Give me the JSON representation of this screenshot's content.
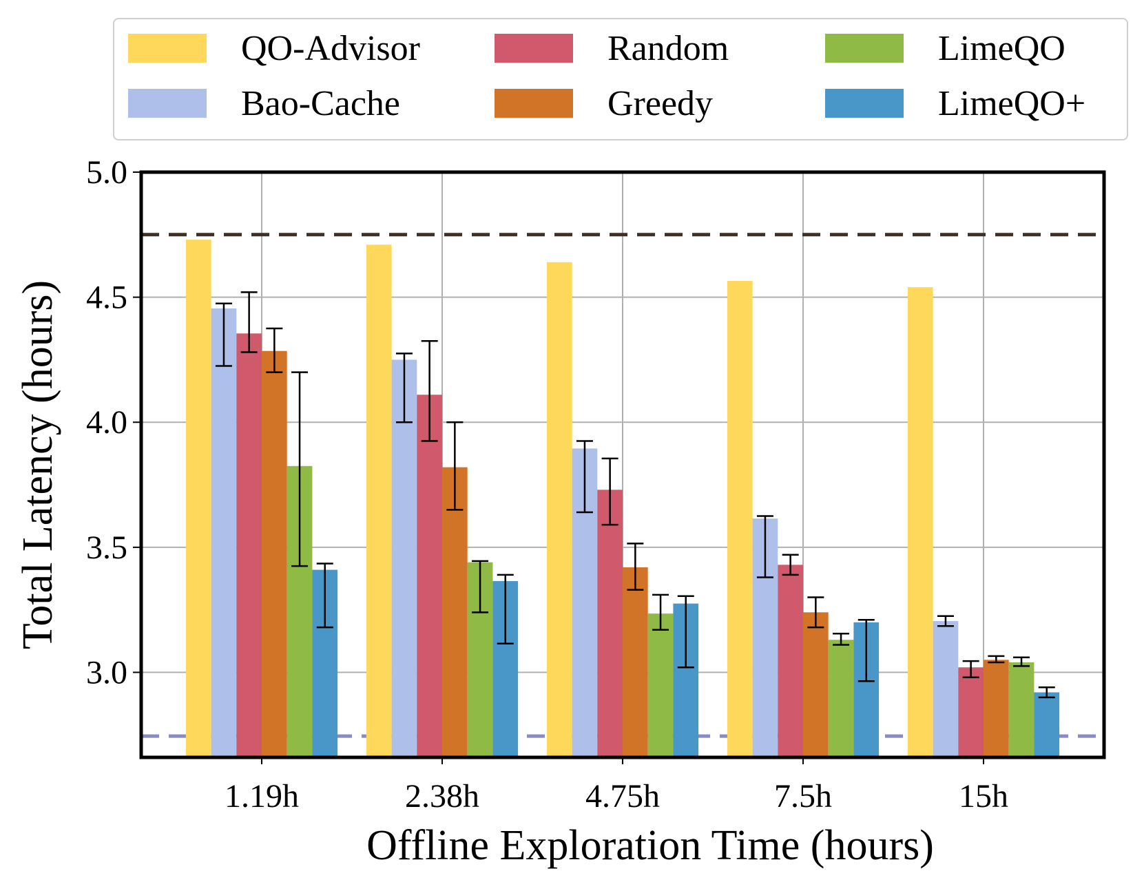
{
  "chart_data": {
    "type": "bar",
    "title": "",
    "xlabel": "Offline Exploration Time (hours)",
    "ylabel": "Total Latency (hours)",
    "categories": [
      "1.19h",
      "2.38h",
      "4.75h",
      "7.5h",
      "15h"
    ],
    "ylim": [
      2.66,
      5.0
    ],
    "yticks": [
      "3.0",
      "3.5",
      "4.0",
      "4.5",
      "5.0"
    ],
    "grid": true,
    "legend_position": "top",
    "reference_lines": [
      {
        "value": 4.75,
        "color": "#3d3028",
        "style": "dashed"
      },
      {
        "value": 2.745,
        "color": "#8a8ac6",
        "style": "dashed"
      }
    ],
    "series": [
      {
        "name": "QO-Advisor",
        "color": "#fed85a",
        "values": [
          4.73,
          4.71,
          4.64,
          4.565,
          4.54
        ],
        "errors": null
      },
      {
        "name": "Bao-Cache",
        "color": "#aec0ea",
        "values": [
          4.455,
          4.25,
          3.895,
          3.615,
          3.205
        ],
        "errors": [
          [
            4.225,
            4.475
          ],
          [
            4.0,
            4.275
          ],
          [
            3.64,
            3.925
          ],
          [
            3.38,
            3.625
          ],
          [
            3.185,
            3.225
          ]
        ]
      },
      {
        "name": "Random",
        "color": "#d05a6c",
        "values": [
          4.355,
          4.11,
          3.73,
          3.43,
          3.02
        ],
        "errors": [
          [
            4.28,
            4.52
          ],
          [
            3.925,
            4.325
          ],
          [
            3.59,
            3.855
          ],
          [
            3.39,
            3.47
          ],
          [
            2.98,
            3.045
          ]
        ]
      },
      {
        "name": "Greedy",
        "color": "#d27427",
        "values": [
          4.285,
          3.82,
          3.42,
          3.24,
          3.05
        ],
        "errors": [
          [
            4.2,
            4.375
          ],
          [
            3.65,
            4.0
          ],
          [
            3.33,
            3.515
          ],
          [
            3.18,
            3.3
          ],
          [
            3.04,
            3.065
          ]
        ]
      },
      {
        "name": "LimeQO",
        "color": "#8fba45",
        "values": [
          3.825,
          3.44,
          3.235,
          3.13,
          3.04
        ],
        "errors": [
          [
            3.425,
            4.2
          ],
          [
            3.24,
            3.445
          ],
          [
            3.17,
            3.31
          ],
          [
            3.11,
            3.155
          ],
          [
            3.025,
            3.06
          ]
        ]
      },
      {
        "name": "LimeQO+",
        "color": "#4996c8",
        "values": [
          3.41,
          3.365,
          3.275,
          3.2,
          2.92
        ],
        "errors": [
          [
            3.18,
            3.435
          ],
          [
            3.115,
            3.39
          ],
          [
            3.02,
            3.305
          ],
          [
            2.965,
            3.21
          ],
          [
            2.9,
            2.94
          ]
        ]
      }
    ]
  }
}
